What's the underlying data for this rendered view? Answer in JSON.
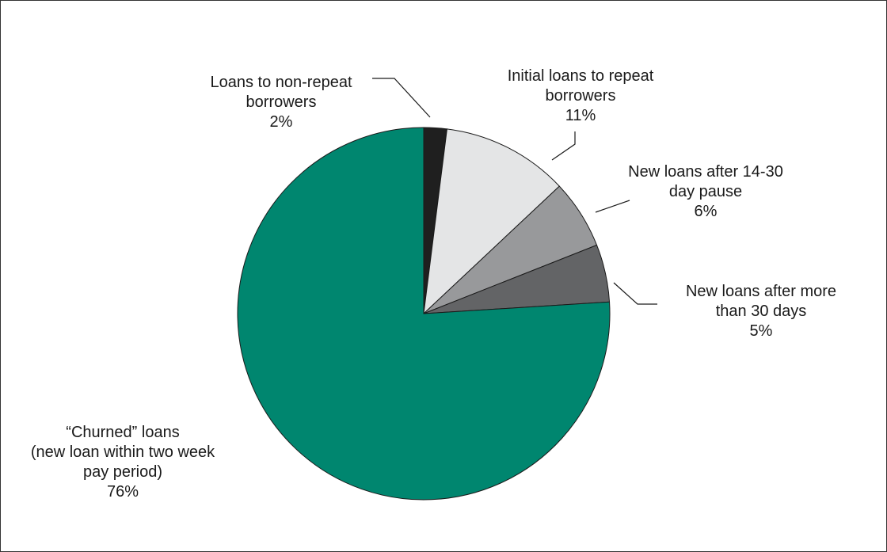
{
  "chart_data": {
    "type": "pie",
    "title": "",
    "start": "top",
    "direction": "clockwise",
    "slices": [
      {
        "label": [
          "Loans to non-repeat",
          "borrowers"
        ],
        "value": 2,
        "display": "2%",
        "color": "#1f1f1f"
      },
      {
        "label": [
          "Initial loans to repeat",
          "borrowers"
        ],
        "value": 11,
        "display": "11%",
        "color": "#e4e5e6"
      },
      {
        "label": [
          "New loans after 14-30",
          "day pause"
        ],
        "value": 6,
        "display": "6%",
        "color": "#98999b"
      },
      {
        "label": [
          "New loans after more",
          "than 30 days"
        ],
        "value": 5,
        "display": "5%",
        "color": "#636466"
      },
      {
        "label": [
          "“Churned” loans",
          "(new loan within two week",
          "pay period)"
        ],
        "value": 76,
        "display": "76%",
        "color": "#00866f"
      }
    ]
  }
}
